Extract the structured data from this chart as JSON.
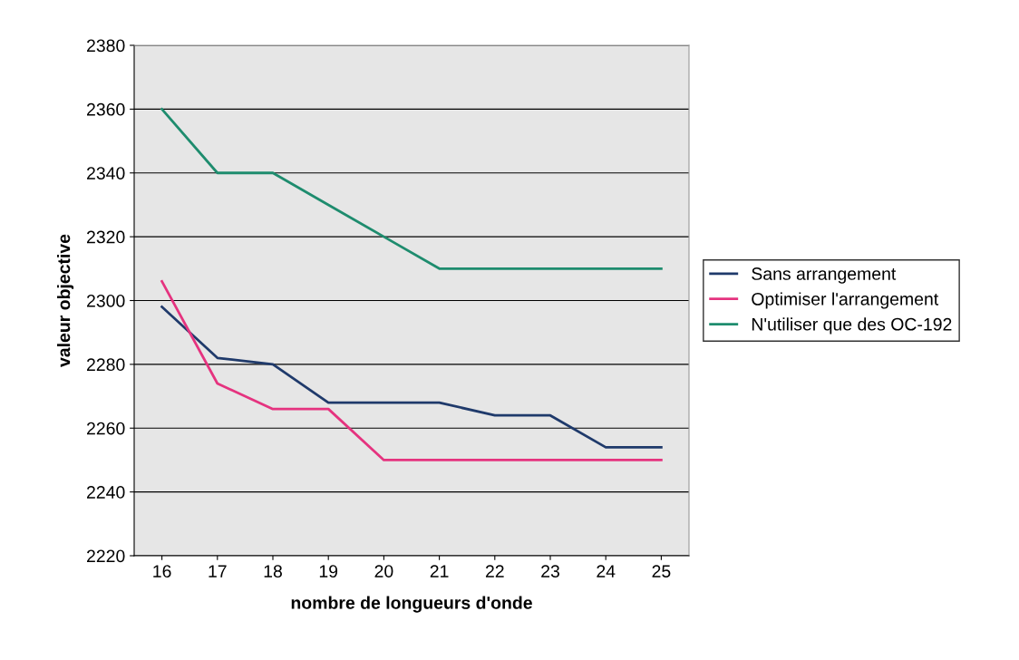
{
  "chart_data": {
    "type": "line",
    "xlabel": "nombre de longueurs d'onde",
    "ylabel": "valeur objective",
    "categories": [
      "16",
      "17",
      "18",
      "19",
      "20",
      "21",
      "22",
      "23",
      "24",
      "25"
    ],
    "series": [
      {
        "name": "Sans arrangement",
        "color": "#1f3a6b",
        "values": [
          2298,
          2282,
          2280,
          2268,
          2268,
          2268,
          2264,
          2264,
          2254,
          2254
        ]
      },
      {
        "name": "Optimiser l'arrangement",
        "color": "#e5337f",
        "values": [
          2306,
          2274,
          2266,
          2266,
          2250,
          2250,
          2250,
          2250,
          2250,
          2250
        ]
      },
      {
        "name": "N'utiliser que des OC-192",
        "color": "#1e8c6e",
        "values": [
          2360,
          2340,
          2340,
          2330,
          2320,
          2310,
          2310,
          2310,
          2310,
          2310
        ]
      }
    ],
    "ylim": [
      2220,
      2380
    ],
    "yticks": [
      2220,
      2240,
      2260,
      2280,
      2300,
      2320,
      2340,
      2360,
      2380
    ],
    "grid": "y",
    "legend": "right",
    "marker": "none",
    "line_style": "solid"
  }
}
